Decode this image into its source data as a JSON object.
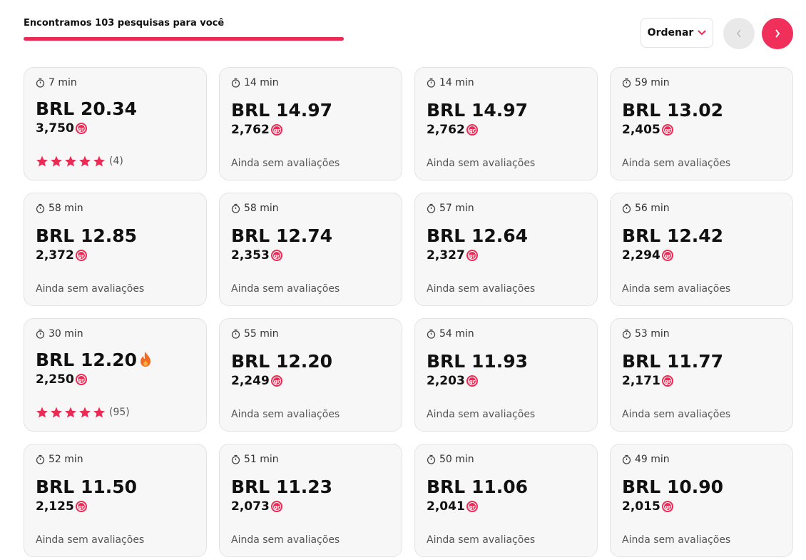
{
  "header": {
    "title": "Encontramos 103 pesquisas para você",
    "sort_label": "Ordenar"
  },
  "cards": [
    {
      "time": "7 min",
      "price": "BRL 20.34",
      "points": "3,750",
      "stars": 5,
      "reviews": "(4)"
    },
    {
      "time": "14 min",
      "price": "BRL 14.97",
      "points": "2,762",
      "reviews": "Ainda sem avaliações"
    },
    {
      "time": "14 min",
      "price": "BRL 14.97",
      "points": "2,762",
      "reviews": "Ainda sem avaliações"
    },
    {
      "time": "59 min",
      "price": "BRL 13.02",
      "points": "2,405",
      "reviews": "Ainda sem avaliações"
    },
    {
      "time": "58 min",
      "price": "BRL 12.85",
      "points": "2,372",
      "reviews": "Ainda sem avaliações"
    },
    {
      "time": "58 min",
      "price": "BRL 12.74",
      "points": "2,353",
      "reviews": "Ainda sem avaliações"
    },
    {
      "time": "57 min",
      "price": "BRL 12.64",
      "points": "2,327",
      "reviews": "Ainda sem avaliações"
    },
    {
      "time": "56 min",
      "price": "BRL 12.42",
      "points": "2,294",
      "reviews": "Ainda sem avaliações"
    },
    {
      "time": "30 min",
      "price": "BRL 12.20",
      "points": "2,250",
      "stars": 5,
      "reviews": "(95)",
      "hot": true
    },
    {
      "time": "55 min",
      "price": "BRL 12.20",
      "points": "2,249",
      "reviews": "Ainda sem avaliações"
    },
    {
      "time": "54 min",
      "price": "BRL 11.93",
      "points": "2,203",
      "reviews": "Ainda sem avaliações"
    },
    {
      "time": "53 min",
      "price": "BRL 11.77",
      "points": "2,171",
      "reviews": "Ainda sem avaliações"
    },
    {
      "time": "52 min",
      "price": "BRL 11.50",
      "points": "2,125",
      "reviews": "Ainda sem avaliações"
    },
    {
      "time": "51 min",
      "price": "BRL 11.23",
      "points": "2,073",
      "reviews": "Ainda sem avaliações"
    },
    {
      "time": "50 min",
      "price": "BRL 11.06",
      "points": "2,041",
      "reviews": "Ainda sem avaliações"
    },
    {
      "time": "49 min",
      "price": "BRL 10.90",
      "points": "2,015",
      "reviews": "Ainda sem avaliações"
    }
  ]
}
